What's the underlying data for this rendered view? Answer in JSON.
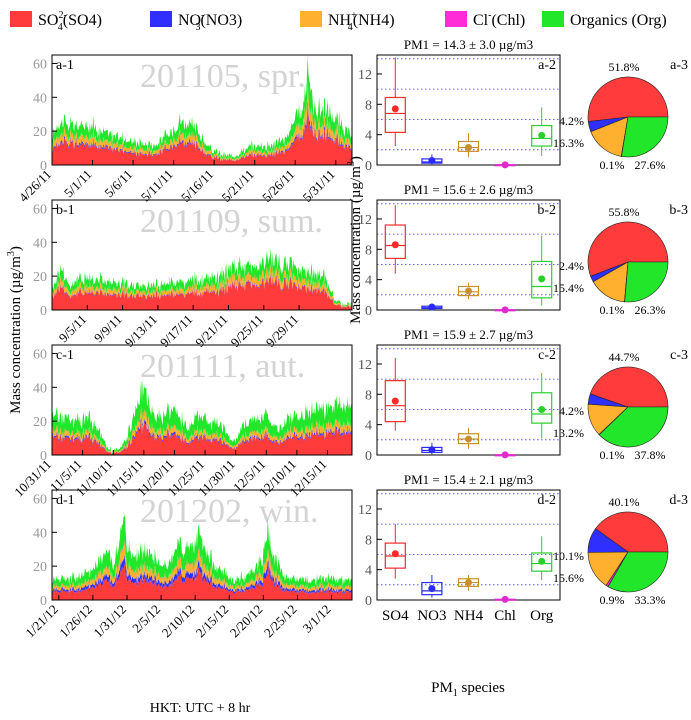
{
  "colors": {
    "SO4": "#ff3b3b",
    "NO3": "#2f2fff",
    "NH4": "#ffb02e",
    "Chl": "#ff2bd6",
    "Org": "#22e62a"
  },
  "legend": [
    {
      "key": "SO4",
      "label": "SO42-(SO4)",
      "pre": "SO",
      "sub": "4",
      "sup": "2-",
      "post": "(SO4)"
    },
    {
      "key": "NO3",
      "label": "NO3-(NO3)",
      "pre": "NO",
      "sub": "3",
      "sup": "-",
      "post": "(NO3)"
    },
    {
      "key": "NH4",
      "label": "NH4+(NH4)",
      "pre": "NH",
      "sub": "4",
      "sup": "+",
      "post": "(NH4)"
    },
    {
      "key": "Chl",
      "label": "Cl-(Chl)",
      "pre": "Cl",
      "sub": "",
      "sup": "-",
      "post": "(Chl)"
    },
    {
      "key": "Org",
      "label": "Organics (Org)",
      "pre": "Organics (Org)",
      "sub": "",
      "sup": "",
      "post": ""
    }
  ],
  "labels": {
    "ylabel_timeseries": "Mass concentration (µg/m3)",
    "ylabel_box": "Mass concentration (µg/m3)",
    "xlabel_box": "PM1 species",
    "xlabel_time": "HKT: UTC + 8 hr"
  },
  "chart_data": [
    {
      "id": "a",
      "type": "area",
      "season": "201105, spr.",
      "panel_labels": [
        "a-1",
        "a-2",
        "a-3"
      ],
      "ylim": [
        0,
        65
      ],
      "yticks": [
        0,
        20,
        40,
        60
      ],
      "xlim": [
        0,
        37
      ],
      "xtick_pos": [
        0,
        5,
        10,
        15,
        20,
        25,
        30,
        35
      ],
      "xtick_labels": [
        "4/26/11",
        "5/1/11",
        "5/6/11",
        "5/11/11",
        "5/16/11",
        "5/21/11",
        "5/26/11",
        "5/31/11"
      ],
      "total_knots": [
        [
          0,
          18
        ],
        [
          1,
          26
        ],
        [
          3,
          23
        ],
        [
          5,
          24
        ],
        [
          6,
          20
        ],
        [
          8,
          17
        ],
        [
          10,
          14
        ],
        [
          12,
          12
        ],
        [
          13,
          13
        ],
        [
          14,
          17
        ],
        [
          15,
          22
        ],
        [
          16,
          27
        ],
        [
          17,
          24
        ],
        [
          18,
          20
        ],
        [
          19,
          12
        ],
        [
          20,
          8
        ],
        [
          21,
          6
        ],
        [
          22,
          5
        ],
        [
          23,
          7
        ],
        [
          24,
          10
        ],
        [
          25,
          11
        ],
        [
          27,
          12
        ],
        [
          29,
          16
        ],
        [
          30,
          27
        ],
        [
          31,
          35
        ],
        [
          31.6,
          60
        ],
        [
          32.2,
          34
        ],
        [
          34,
          32
        ],
        [
          36,
          22
        ],
        [
          37,
          16
        ]
      ],
      "fractions": {
        "SO4": 0.52,
        "NO3": 0.04,
        "NH4": 0.16,
        "Chl": 0.005,
        "Org": 0.275
      },
      "pm1": "PM1 = 14.3 ± 3.0 µg/m3",
      "box": {
        "SO4": {
          "min": 2.5,
          "q1": 4.3,
          "median": 6.8,
          "q3": 8.9,
          "max": 14.2,
          "mean": 7.4
        },
        "NO3": {
          "min": 0.1,
          "q1": 0.25,
          "median": 0.4,
          "q3": 0.8,
          "max": 1.4,
          "mean": 0.6
        },
        "NH4": {
          "min": 1.0,
          "q1": 1.8,
          "median": 2.3,
          "q3": 3.1,
          "max": 4.2,
          "mean": 2.3
        },
        "Chl": {
          "min": 0.0,
          "q1": 0.01,
          "median": 0.02,
          "q3": 0.04,
          "max": 0.08,
          "mean": 0.02
        },
        "Org": {
          "min": 1.2,
          "q1": 2.5,
          "median": 3.5,
          "q3": 5.2,
          "max": 7.6,
          "mean": 3.9
        }
      },
      "pie": {
        "SO4": 51.8,
        "NO3": 4.2,
        "NH4": 16.3,
        "Chl": 0.1,
        "Org": 27.6
      },
      "pie_labels": {
        "SO4": "51.8%",
        "NO3": "4.2%",
        "NH4": "16.3%",
        "Chl": "0.1%",
        "Org": "27.6%"
      }
    },
    {
      "id": "b",
      "type": "area",
      "season": "201109, sum.",
      "panel_labels": [
        "b-1",
        "b-2",
        "b-3"
      ],
      "ylim": [
        0,
        65
      ],
      "yticks": [
        0,
        20,
        40,
        60
      ],
      "xlim": [
        0,
        34
      ],
      "xtick_pos": [
        4,
        8,
        12,
        16,
        20,
        24,
        28
      ],
      "xtick_labels": [
        "9/5/11",
        "9/9/11",
        "9/13/11",
        "9/17/11",
        "9/21/11",
        "9/25/11",
        "9/29/11"
      ],
      "total_knots": [
        [
          0,
          12
        ],
        [
          1,
          25
        ],
        [
          2,
          15
        ],
        [
          4,
          20
        ],
        [
          6,
          17
        ],
        [
          8,
          15
        ],
        [
          10,
          14
        ],
        [
          12,
          15
        ],
        [
          14,
          16
        ],
        [
          16,
          17
        ],
        [
          18,
          18
        ],
        [
          19,
          20
        ],
        [
          20,
          24
        ],
        [
          22,
          26
        ],
        [
          24,
          28
        ],
        [
          25,
          30
        ],
        [
          26,
          27
        ],
        [
          28,
          25
        ],
        [
          30,
          22
        ],
        [
          31,
          19
        ],
        [
          32,
          6
        ],
        [
          33,
          3
        ],
        [
          34,
          4
        ]
      ],
      "fractions": {
        "SO4": 0.56,
        "NO3": 0.024,
        "NH4": 0.154,
        "Chl": 0.004,
        "Org": 0.258
      },
      "pm1": "PM1 = 15.6 ± 2.6 µg/m3",
      "box": {
        "SO4": {
          "min": 4.8,
          "q1": 6.8,
          "median": 8.5,
          "q3": 11.2,
          "max": 13.8,
          "mean": 8.6
        },
        "NO3": {
          "min": 0.1,
          "q1": 0.2,
          "median": 0.3,
          "q3": 0.5,
          "max": 0.7,
          "mean": 0.4
        },
        "NH4": {
          "min": 1.4,
          "q1": 1.9,
          "median": 2.4,
          "q3": 3.1,
          "max": 3.6,
          "mean": 2.5
        },
        "Chl": {
          "min": 0.0,
          "q1": 0.01,
          "median": 0.02,
          "q3": 0.03,
          "max": 0.05,
          "mean": 0.02
        },
        "Org": {
          "min": 0.6,
          "q1": 1.6,
          "median": 3.1,
          "q3": 6.4,
          "max": 9.8,
          "mean": 4.1
        }
      },
      "pie": {
        "SO4": 55.8,
        "NO3": 2.4,
        "NH4": 15.4,
        "Chl": 0.1,
        "Org": 26.3
      },
      "pie_labels": {
        "SO4": "55.8%",
        "NO3": "2.4%",
        "NH4": "15.4%",
        "Chl": "0.1%",
        "Org": "26.3%"
      }
    },
    {
      "id": "c",
      "type": "area",
      "season": "201111, aut.",
      "panel_labels": [
        "c-1",
        "c-2",
        "c-3"
      ],
      "ylim": [
        0,
        65
      ],
      "yticks": [
        0,
        20,
        40,
        60
      ],
      "xlim": [
        0,
        49
      ],
      "xtick_pos": [
        0,
        5,
        10,
        15,
        20,
        25,
        30,
        35,
        40,
        45
      ],
      "xtick_labels": [
        "10/31/11",
        "11/5/11",
        "11/10/11",
        "11/15/11",
        "11/20/11",
        "11/25/11",
        "11/30/11",
        "12/5/11",
        "12/10/11",
        "12/15/11"
      ],
      "total_knots": [
        [
          0,
          25
        ],
        [
          2,
          22
        ],
        [
          4,
          20
        ],
        [
          6,
          22
        ],
        [
          7,
          17
        ],
        [
          8,
          12
        ],
        [
          9,
          5
        ],
        [
          10,
          2
        ],
        [
          11,
          3
        ],
        [
          12,
          8
        ],
        [
          13,
          20
        ],
        [
          14,
          30
        ],
        [
          15,
          40
        ],
        [
          16,
          30
        ],
        [
          17,
          24
        ],
        [
          18,
          22
        ],
        [
          19,
          25
        ],
        [
          20,
          28
        ],
        [
          21,
          20
        ],
        [
          22,
          15
        ],
        [
          23,
          18
        ],
        [
          24,
          26
        ],
        [
          25,
          22
        ],
        [
          26,
          20
        ],
        [
          28,
          17
        ],
        [
          29,
          10
        ],
        [
          30,
          8
        ],
        [
          31,
          16
        ],
        [
          32,
          20
        ],
        [
          34,
          22
        ],
        [
          35,
          24
        ],
        [
          36,
          18
        ],
        [
          37,
          14
        ],
        [
          38,
          20
        ],
        [
          40,
          24
        ],
        [
          42,
          26
        ],
        [
          44,
          28
        ],
        [
          46,
          30
        ],
        [
          47,
          32
        ],
        [
          48,
          28
        ],
        [
          49,
          26
        ]
      ],
      "fractions": {
        "SO4": 0.45,
        "NO3": 0.042,
        "NH4": 0.132,
        "Chl": 0.004,
        "Org": 0.372
      },
      "pm1": "PM1 = 15.9 ± 2.7 µg/m3",
      "box": {
        "SO4": {
          "min": 3.2,
          "q1": 4.4,
          "median": 6.5,
          "q3": 9.8,
          "max": 12.8,
          "mean": 7.1
        },
        "NO3": {
          "min": 0.1,
          "q1": 0.35,
          "median": 0.6,
          "q3": 1.0,
          "max": 1.6,
          "mean": 0.7
        },
        "NH4": {
          "min": 0.8,
          "q1": 1.5,
          "median": 2.1,
          "q3": 2.8,
          "max": 3.6,
          "mean": 2.1
        },
        "Chl": {
          "min": 0.0,
          "q1": 0.01,
          "median": 0.02,
          "q3": 0.03,
          "max": 0.06,
          "mean": 0.02
        },
        "Org": {
          "min": 2.2,
          "q1": 4.2,
          "median": 5.4,
          "q3": 8.2,
          "max": 10.8,
          "mean": 6.0
        }
      },
      "pie": {
        "SO4": 44.7,
        "NO3": 4.2,
        "NH4": 13.2,
        "Chl": 0.1,
        "Org": 37.8
      },
      "pie_labels": {
        "SO4": "44.7%",
        "NO3": "4.2%",
        "NH4": "13.2%",
        "Chl": "0.1%",
        "Org": "37.8%"
      }
    },
    {
      "id": "d",
      "type": "area",
      "season": "201202, win.",
      "panel_labels": [
        "d-1",
        "d-2",
        "d-3"
      ],
      "ylim": [
        0,
        65
      ],
      "yticks": [
        0,
        20,
        40,
        60
      ],
      "xlim": [
        0,
        44
      ],
      "xtick_pos": [
        1,
        6,
        11,
        16,
        21,
        26,
        31,
        36,
        41
      ],
      "xtick_labels": [
        "1/21/12",
        "1/26/12",
        "1/31/12",
        "2/5/12",
        "2/10/12",
        "2/15/12",
        "2/20/12",
        "2/25/12",
        "3/1/12"
      ],
      "total_knots": [
        [
          0,
          12
        ],
        [
          2,
          13
        ],
        [
          4,
          14
        ],
        [
          6,
          18
        ],
        [
          7,
          24
        ],
        [
          8,
          28
        ],
        [
          9,
          22
        ],
        [
          10,
          35
        ],
        [
          10.6,
          48
        ],
        [
          11.2,
          28
        ],
        [
          12,
          24
        ],
        [
          13,
          30
        ],
        [
          14,
          26
        ],
        [
          15,
          24
        ],
        [
          16,
          20
        ],
        [
          17,
          22
        ],
        [
          18,
          26
        ],
        [
          18.8,
          36
        ],
        [
          19.4,
          24
        ],
        [
          20,
          30
        ],
        [
          21,
          34
        ],
        [
          21.6,
          44
        ],
        [
          22.2,
          30
        ],
        [
          23,
          26
        ],
        [
          24,
          20
        ],
        [
          25,
          16
        ],
        [
          26,
          13
        ],
        [
          27,
          12
        ],
        [
          28,
          14
        ],
        [
          29,
          16
        ],
        [
          30,
          20
        ],
        [
          31,
          28
        ],
        [
          31.6,
          43
        ],
        [
          32.2,
          30
        ],
        [
          33,
          22
        ],
        [
          34,
          14
        ],
        [
          36,
          12
        ],
        [
          38,
          11
        ],
        [
          40,
          13
        ],
        [
          42,
          12
        ],
        [
          44,
          11
        ]
      ],
      "fractions": {
        "SO4": 0.4,
        "NO3": 0.1,
        "NH4": 0.156,
        "Chl": 0.009,
        "Org": 0.335
      },
      "pm1": "PM1 = 15.4 ± 2.1 µg/m3",
      "box": {
        "SO4": {
          "min": 2.8,
          "q1": 4.2,
          "median": 5.8,
          "q3": 7.5,
          "max": 10.0,
          "mean": 6.1
        },
        "NO3": {
          "min": 0.3,
          "q1": 0.7,
          "median": 1.2,
          "q3": 2.3,
          "max": 3.3,
          "mean": 1.5
        },
        "NH4": {
          "min": 1.2,
          "q1": 1.8,
          "median": 2.3,
          "q3": 2.8,
          "max": 3.3,
          "mean": 2.3
        },
        "Chl": {
          "min": 0.0,
          "q1": 0.03,
          "median": 0.06,
          "q3": 0.1,
          "max": 0.2,
          "mean": 0.08
        },
        "Org": {
          "min": 2.6,
          "q1": 3.8,
          "median": 4.8,
          "q3": 6.2,
          "max": 8.4,
          "mean": 5.1
        }
      },
      "pie": {
        "SO4": 40.1,
        "NO3": 10.1,
        "NH4": 15.6,
        "Chl": 0.9,
        "Org": 33.3
      },
      "pie_labels": {
        "SO4": "40.1%",
        "NO3": "10.1%",
        "NH4": "15.6%",
        "Chl": "0.9%",
        "Org": "33.3%"
      }
    }
  ],
  "box_common": {
    "ylim": [
      0,
      14.5
    ],
    "yticks": [
      0,
      4,
      8,
      12
    ],
    "dotted": [
      2,
      6,
      10,
      14
    ],
    "categories": [
      "SO4",
      "NO3",
      "NH4",
      "Chl",
      "Org"
    ]
  }
}
